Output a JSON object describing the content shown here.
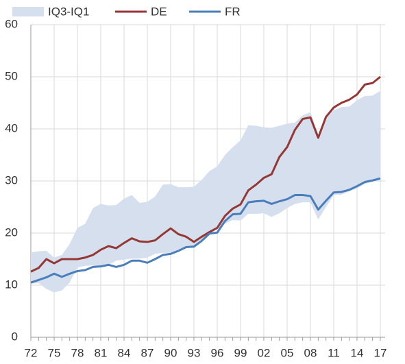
{
  "chart_data": {
    "type": "line",
    "categories": [
      "72",
      null,
      null,
      "75",
      null,
      null,
      "78",
      null,
      null,
      "81",
      null,
      null,
      "84",
      null,
      null,
      "87",
      null,
      null,
      "90",
      null,
      null,
      "93",
      null,
      null,
      "96",
      null,
      null,
      "99",
      null,
      null,
      "02",
      null,
      null,
      "05",
      null,
      null,
      "08",
      null,
      null,
      "11",
      null,
      null,
      "14",
      null,
      null,
      "17"
    ],
    "band": {
      "name": "IQ3-IQ1",
      "color": "#d5dfee",
      "high": [
        16.3,
        16.5,
        16.6,
        15.3,
        15.8,
        17.9,
        21.0,
        21.8,
        24.8,
        25.6,
        25.3,
        25.4,
        26.6,
        27.3,
        25.8,
        26.0,
        27.0,
        29.3,
        29.4,
        28.8,
        28.8,
        28.9,
        30.2,
        31.9,
        32.8,
        35.0,
        36.5,
        37.8,
        40.7,
        40.6,
        40.3,
        40.2,
        40.6,
        41.0,
        41.2,
        42.6,
        43.2,
        38.9,
        42.4,
        43.6,
        44.2,
        44.3,
        45.5,
        46.3,
        46.4,
        47.3
      ],
      "low": [
        10.3,
        10.4,
        9.3,
        8.6,
        9.0,
        10.5,
        13.4,
        13.7,
        13.8,
        13.5,
        13.9,
        14.7,
        14.9,
        15.1,
        15.1,
        15.3,
        16.0,
        16.2,
        16.2,
        16.9,
        17.4,
        17.4,
        18.8,
        19.6,
        20.8,
        21.8,
        22.5,
        22.4,
        23.7,
        23.7,
        23.8,
        23.1,
        23.8,
        24.8,
        25.6,
        25.9,
        25.9,
        22.6,
        25.0,
        27.3,
        27.4,
        28.0,
        28.6,
        29.4,
        29.9,
        30.2
      ]
    },
    "series": [
      {
        "name": "DE",
        "color": "#953735",
        "values": [
          12.6,
          13.3,
          15.0,
          14.2,
          15.0,
          15.0,
          15.0,
          15.3,
          15.8,
          16.8,
          17.5,
          17.1,
          18.1,
          19.0,
          18.4,
          18.3,
          18.6,
          19.8,
          20.9,
          19.8,
          19.3,
          18.3,
          19.3,
          20.2,
          21.0,
          23.3,
          24.7,
          25.5,
          28.2,
          29.3,
          30.6,
          31.3,
          34.6,
          36.5,
          39.8,
          41.9,
          42.2,
          38.3,
          42.3,
          44.1,
          45.0,
          45.6,
          46.6,
          48.5,
          48.8,
          50.0
        ]
      },
      {
        "name": "FR",
        "color": "#4a7ebb",
        "values": [
          10.5,
          11.0,
          11.5,
          12.2,
          11.6,
          12.2,
          12.7,
          12.9,
          13.5,
          13.6,
          13.9,
          13.5,
          13.9,
          14.7,
          14.7,
          14.3,
          15.0,
          15.8,
          16.0,
          16.6,
          17.3,
          17.4,
          18.5,
          19.9,
          20.1,
          22.3,
          23.6,
          23.7,
          25.9,
          26.1,
          26.2,
          25.6,
          26.1,
          26.5,
          27.3,
          27.3,
          27.1,
          24.5,
          26.2,
          27.8,
          27.9,
          28.3,
          29.0,
          29.8,
          30.1,
          30.5
        ]
      }
    ],
    "ylim": [
      0,
      60
    ],
    "yticks": [
      0,
      10,
      20,
      30,
      40,
      50,
      60
    ],
    "grid": true
  }
}
